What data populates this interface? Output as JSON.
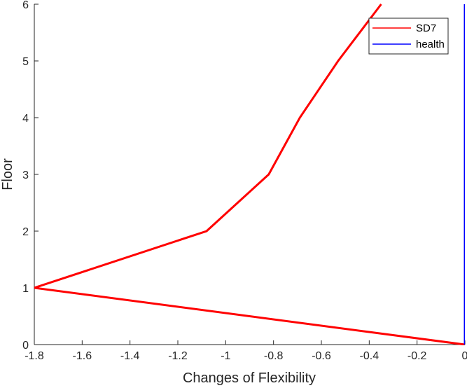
{
  "chart_data": {
    "type": "line",
    "xlabel": "Changes of Flexibility",
    "ylabel": "Floor",
    "xlim": [
      -1.8,
      0
    ],
    "ylim": [
      0,
      6
    ],
    "xticks": [
      -1.8,
      -1.6,
      -1.4,
      -1.2,
      -1,
      -0.8,
      -0.6,
      -0.4,
      -0.2,
      0
    ],
    "xtick_labels": [
      "-1.8",
      "-1.6",
      "-1.4",
      "-1.2",
      "-1",
      "-0.8",
      "-0.6",
      "-0.4",
      "-0.2",
      "0"
    ],
    "yticks": [
      0,
      1,
      2,
      3,
      4,
      5,
      6
    ],
    "ytick_labels": [
      "0",
      "1",
      "2",
      "3",
      "4",
      "5",
      "6"
    ],
    "grid": false,
    "legend_position": "top-right",
    "series": [
      {
        "name": "SD7",
        "color": "#ff0000",
        "x": [
          0,
          -1.8,
          -1.08,
          -0.82,
          -0.69,
          -0.53,
          -0.35
        ],
        "y": [
          0,
          1,
          2,
          3,
          4,
          5,
          6
        ]
      },
      {
        "name": "health",
        "color": "#0000ff",
        "x": [
          0,
          0,
          0,
          0,
          0,
          0,
          0
        ],
        "y": [
          0,
          1,
          2,
          3,
          4,
          5,
          6
        ]
      }
    ]
  }
}
